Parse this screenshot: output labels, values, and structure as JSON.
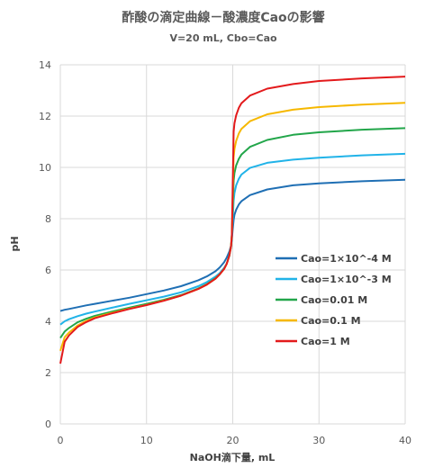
{
  "chart_data": {
    "type": "line",
    "title": "酢酸の滴定曲線－酸濃度Caoの影響",
    "subtitle": "V=20 mL, Cbo=Cao",
    "xlabel": "NaOH滴下量, mL",
    "ylabel": "pH",
    "xlim": [
      0,
      40
    ],
    "ylim": [
      0,
      14
    ],
    "xticks": [
      0,
      10,
      20,
      30,
      40
    ],
    "yticks": [
      0,
      2,
      4,
      6,
      8,
      10,
      12,
      14
    ],
    "grid": true,
    "legend_position": "right",
    "x": [
      0,
      0.5,
      1,
      2,
      3,
      4,
      6,
      8,
      10,
      12,
      14,
      16,
      17,
      18,
      18.5,
      19,
      19.3,
      19.6,
      19.8,
      19.9,
      20,
      20.1,
      20.2,
      20.4,
      20.7,
      21,
      22,
      24,
      27,
      30,
      35,
      40
    ],
    "series": [
      {
        "name": "Cao=1×10^-4 M",
        "color": "#1f6fb4",
        "values": [
          4.4,
          4.45,
          4.48,
          4.55,
          4.62,
          4.68,
          4.8,
          4.92,
          5.06,
          5.2,
          5.37,
          5.6,
          5.75,
          5.95,
          6.1,
          6.3,
          6.48,
          6.72,
          6.95,
          7.2,
          7.6,
          7.95,
          8.15,
          8.35,
          8.55,
          8.68,
          8.92,
          9.14,
          9.3,
          9.38,
          9.46,
          9.52
        ]
      },
      {
        "name": "Cao=1×10^-3 M",
        "color": "#21b3e8",
        "values": [
          3.87,
          4.0,
          4.08,
          4.2,
          4.3,
          4.38,
          4.53,
          4.68,
          4.82,
          4.96,
          5.13,
          5.37,
          5.53,
          5.74,
          5.88,
          6.08,
          6.25,
          6.55,
          6.9,
          7.3,
          8.0,
          8.7,
          9.0,
          9.3,
          9.55,
          9.72,
          9.98,
          10.18,
          10.3,
          10.38,
          10.47,
          10.53
        ]
      },
      {
        "name": "Cao=0.01 M",
        "color": "#22a64a",
        "values": [
          3.35,
          3.6,
          3.74,
          3.96,
          4.1,
          4.21,
          4.38,
          4.53,
          4.68,
          4.84,
          5.02,
          5.28,
          5.45,
          5.68,
          5.84,
          6.05,
          6.25,
          6.56,
          6.92,
          7.4,
          8.45,
          9.48,
          9.78,
          10.08,
          10.33,
          10.5,
          10.8,
          11.07,
          11.27,
          11.37,
          11.47,
          11.53
        ]
      },
      {
        "name": "Cao=0.1 M",
        "color": "#f6b800",
        "values": [
          2.85,
          3.38,
          3.56,
          3.84,
          4.01,
          4.15,
          4.33,
          4.49,
          4.64,
          4.81,
          5.0,
          5.26,
          5.43,
          5.66,
          5.83,
          6.04,
          6.24,
          6.56,
          6.92,
          7.35,
          8.9,
          10.4,
          10.72,
          11.03,
          11.32,
          11.5,
          11.8,
          12.07,
          12.25,
          12.35,
          12.45,
          12.52
        ]
      },
      {
        "name": "Cao=1 M",
        "color": "#e31a1c",
        "values": [
          2.35,
          3.2,
          3.45,
          3.78,
          3.97,
          4.12,
          4.31,
          4.48,
          4.63,
          4.8,
          5.0,
          5.26,
          5.43,
          5.66,
          5.83,
          6.04,
          6.24,
          6.56,
          6.92,
          7.35,
          9.4,
          11.4,
          11.72,
          12.03,
          12.32,
          12.5,
          12.8,
          13.07,
          13.25,
          13.37,
          13.47,
          13.54
        ]
      }
    ]
  }
}
